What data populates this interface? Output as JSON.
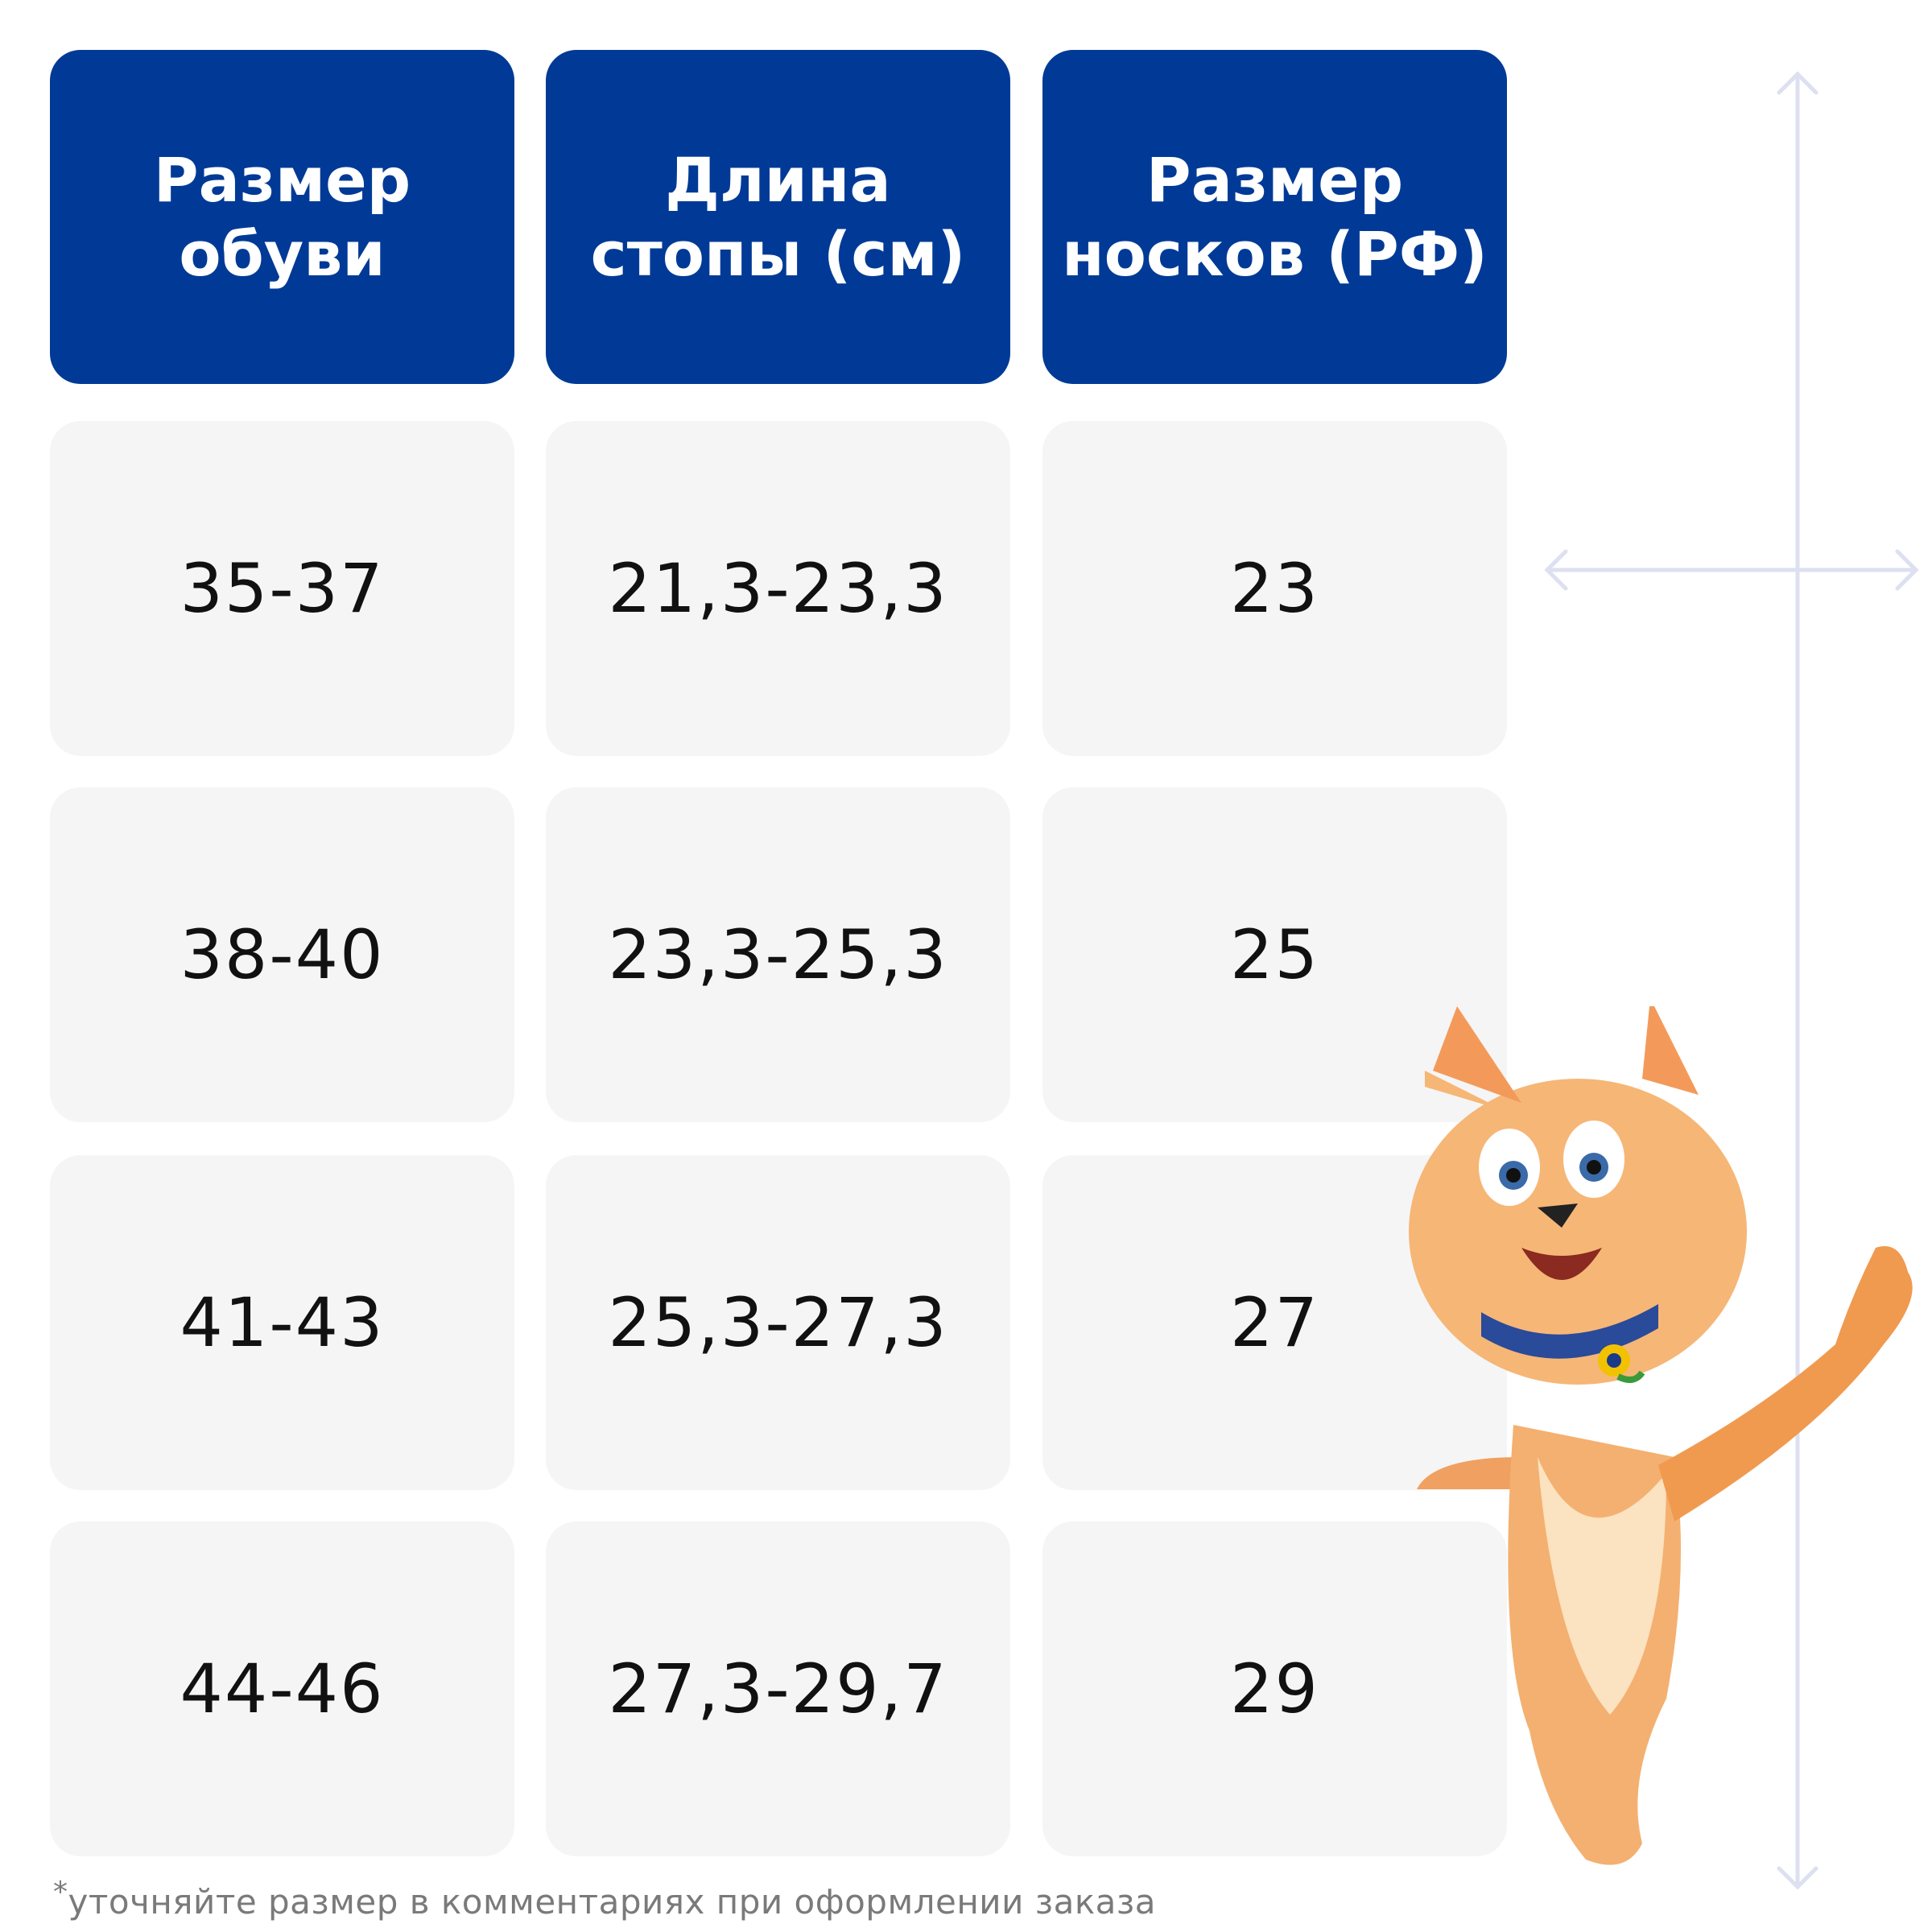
{
  "headers": [
    {
      "line1": "Размер",
      "line2": "обуви"
    },
    {
      "line1": "Длина",
      "line2": "стопы (см)"
    },
    {
      "line1": "Размер",
      "line2": "носков (РФ)"
    }
  ],
  "rows": [
    [
      "35-37",
      "21,3-23,3",
      "23"
    ],
    [
      "38-40",
      "23,3-25,3",
      "25"
    ],
    [
      "41-43",
      "25,3-27,3",
      "27"
    ],
    [
      "44-46",
      "27,3-29,7",
      "29"
    ]
  ],
  "footer": {
    "asterisk": "*",
    "text": "уточняйте размер в комментариях при оформлении заказа"
  },
  "colors": {
    "header_bg": "#003a96",
    "cell_bg": "#f5f5f5",
    "guide": "#dde0f0"
  },
  "icons": [
    "vertical-measure-arrow-icon",
    "horizontal-measure-arrow-icon",
    "cat-mascot-illustration"
  ]
}
